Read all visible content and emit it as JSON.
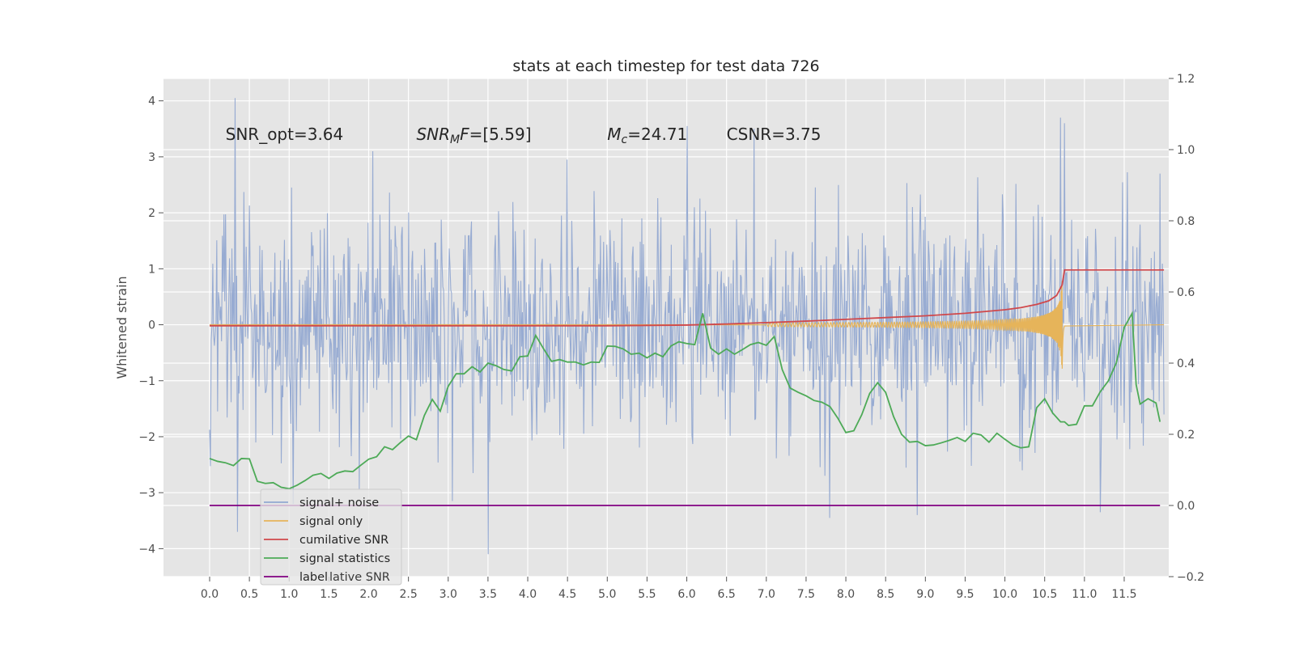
{
  "chart_data": {
    "type": "line",
    "title": "stats at each timestep for test data 726",
    "ylabel": "Whitened strain",
    "xlabel": "",
    "xlim": [
      -0.58,
      12.06
    ],
    "ylim": [
      -4.5,
      4.4
    ],
    "ylim_right": [
      -0.2,
      1.2
    ],
    "grid": true,
    "background": "#e5e5e5",
    "x_ticks": [
      0.0,
      0.5,
      1.0,
      1.5,
      2.0,
      2.5,
      3.0,
      3.5,
      4.0,
      4.5,
      5.0,
      5.5,
      6.0,
      6.5,
      7.0,
      7.5,
      8.0,
      8.5,
      9.0,
      9.5,
      10.0,
      10.5,
      11.0,
      11.5
    ],
    "x_tick_labels": [
      "0.0",
      "0.5",
      "1.0",
      "1.5",
      "2.0",
      "2.5",
      "3.0",
      "3.5",
      "4.0",
      "4.5",
      "5.0",
      "5.5",
      "6.0",
      "6.5",
      "7.0",
      "7.5",
      "8.0",
      "8.5",
      "9.0",
      "9.5",
      "10.0",
      "10.5",
      "11.0",
      "11.5"
    ],
    "y_ticks": [
      -4,
      -3,
      -2,
      -1,
      0,
      1,
      2,
      3,
      4
    ],
    "y_tick_labels": [
      "−4",
      "−3",
      "−2",
      "−1",
      "0",
      "1",
      "2",
      "3",
      "4"
    ],
    "y_ticks_right": [
      -0.2,
      0.0,
      0.2,
      0.4,
      0.6,
      0.8,
      1.0,
      1.2
    ],
    "y_tick_labels_right": [
      "−0.2",
      "0.0",
      "0.2",
      "0.4",
      "0.6",
      "0.8",
      "1.0",
      "1.2"
    ],
    "annotations": [
      {
        "text": "SNR_opt=3.64",
        "x": 0.2,
        "y": 3.3
      },
      {
        "text": "SNR",
        "sub": "M",
        "after": "F=[5.59]",
        "italic": true,
        "x": 2.6,
        "y": 3.3
      },
      {
        "text": "M",
        "sub": "c",
        "after": "=24.71",
        "italic": true,
        "x": 5.0,
        "y": 3.3
      },
      {
        "text": "CSNR=3.75",
        "x": 6.5,
        "y": 3.3
      }
    ],
    "noise": {
      "x_start": 0.0,
      "x_end": 12.0,
      "samples": 1200,
      "sigma": 1.0,
      "spikes": [
        [
          0.32,
          4.05
        ],
        [
          0.35,
          -3.7
        ],
        [
          1.05,
          -3.2
        ],
        [
          2.05,
          3.1
        ],
        [
          3.05,
          -3.15
        ],
        [
          3.5,
          3.75
        ],
        [
          3.5,
          -4.1
        ],
        [
          6.0,
          3.55
        ],
        [
          6.85,
          3.5
        ],
        [
          7.8,
          -3.45
        ],
        [
          8.9,
          -3.4
        ],
        [
          10.7,
          3.7
        ],
        [
          10.75,
          3.6
        ],
        [
          11.2,
          -3.35
        ],
        [
          11.95,
          2.7
        ]
      ],
      "color": "#92a8d1"
    },
    "series": [
      {
        "name": "signal+ noise",
        "color": "#92a8d1",
        "axis": "left",
        "kind": "noise"
      },
      {
        "name": "signal only",
        "color": "#e6b45a",
        "axis": "left",
        "kind": "chirp",
        "peak_x": 10.72,
        "peak_amp": 0.85
      },
      {
        "name": "cumilative SNR",
        "color": "#d0484b",
        "axis": "right",
        "x": [
          0.0,
          5.0,
          6.0,
          6.5,
          7.0,
          7.5,
          8.0,
          8.5,
          9.0,
          9.5,
          10.0,
          10.2,
          10.4,
          10.55,
          10.65,
          10.72,
          10.75,
          12.0
        ],
        "values": [
          0.505,
          0.505,
          0.507,
          0.51,
          0.514,
          0.518,
          0.523,
          0.528,
          0.533,
          0.54,
          0.55,
          0.556,
          0.565,
          0.575,
          0.59,
          0.62,
          0.662,
          0.662
        ]
      },
      {
        "name": "signal statistics",
        "color": "#4daa57",
        "axis": "right",
        "x": [
          0.0,
          0.1,
          0.2,
          0.3,
          0.4,
          0.5,
          0.6,
          0.7,
          0.8,
          0.9,
          1.0,
          1.1,
          1.2,
          1.3,
          1.4,
          1.5,
          1.6,
          1.7,
          1.8,
          1.9,
          2.0,
          2.1,
          2.2,
          2.3,
          2.4,
          2.5,
          2.6,
          2.7,
          2.8,
          2.9,
          3.0,
          3.1,
          3.2,
          3.3,
          3.4,
          3.5,
          3.6,
          3.7,
          3.8,
          3.9,
          4.0,
          4.1,
          4.2,
          4.3,
          4.4,
          4.5,
          4.6,
          4.7,
          4.8,
          4.9,
          5.0,
          5.1,
          5.2,
          5.3,
          5.4,
          5.5,
          5.6,
          5.7,
          5.8,
          5.9,
          6.0,
          6.1,
          6.2,
          6.3,
          6.4,
          6.5,
          6.6,
          6.7,
          6.8,
          6.9,
          7.0,
          7.1,
          7.2,
          7.3,
          7.4,
          7.5,
          7.6,
          7.7,
          7.8,
          7.9,
          8.0,
          8.1,
          8.2,
          8.3,
          8.4,
          8.5,
          8.6,
          8.7,
          8.8,
          8.9,
          9.0,
          9.1,
          9.2,
          9.3,
          9.4,
          9.5,
          9.6,
          9.7,
          9.8,
          9.9,
          10.0,
          10.1,
          10.2,
          10.3,
          10.4,
          10.5,
          10.6,
          10.7,
          10.75,
          10.8,
          10.9,
          11.0,
          11.1,
          11.2,
          11.3,
          11.4,
          11.5,
          11.6,
          11.65,
          11.7,
          11.8,
          11.9,
          11.95
        ],
        "values": [
          0.132,
          0.124,
          0.12,
          0.112,
          0.132,
          0.131,
          0.068,
          0.062,
          0.064,
          0.051,
          0.047,
          0.057,
          0.07,
          0.085,
          0.09,
          0.076,
          0.091,
          0.097,
          0.095,
          0.113,
          0.13,
          0.137,
          0.165,
          0.157,
          0.177,
          0.195,
          0.185,
          0.253,
          0.298,
          0.265,
          0.335,
          0.37,
          0.37,
          0.39,
          0.375,
          0.4,
          0.393,
          0.382,
          0.378,
          0.418,
          0.42,
          0.478,
          0.44,
          0.405,
          0.41,
          0.403,
          0.403,
          0.395,
          0.403,
          0.402,
          0.448,
          0.447,
          0.44,
          0.425,
          0.428,
          0.415,
          0.428,
          0.418,
          0.448,
          0.46,
          0.455,
          0.452,
          0.54,
          0.442,
          0.425,
          0.44,
          0.425,
          0.438,
          0.452,
          0.458,
          0.45,
          0.475,
          0.382,
          0.33,
          0.318,
          0.308,
          0.295,
          0.29,
          0.278,
          0.245,
          0.205,
          0.21,
          0.255,
          0.315,
          0.345,
          0.318,
          0.25,
          0.2,
          0.178,
          0.18,
          0.168,
          0.17,
          0.176,
          0.183,
          0.191,
          0.18,
          0.203,
          0.198,
          0.178,
          0.203,
          0.186,
          0.17,
          0.162,
          0.165,
          0.275,
          0.3,
          0.26,
          0.235,
          0.235,
          0.225,
          0.228,
          0.28,
          0.28,
          0.32,
          0.35,
          0.4,
          0.5,
          0.54,
          0.34,
          0.285,
          0.3,
          0.288,
          0.235
        ],
        "note_x": [
          0.0,
          0.1,
          0.2,
          0.3,
          0.4,
          0.5,
          0.6,
          0.7,
          0.8,
          0.9,
          1.0,
          1.1,
          1.2,
          1.3,
          1.4,
          1.5,
          1.6,
          1.7,
          1.8,
          1.9,
          2.0,
          2.1,
          2.2,
          2.3,
          2.4,
          2.5,
          2.6,
          2.7,
          2.8,
          2.9,
          3.0,
          3.1,
          3.2,
          3.3,
          3.4,
          3.5,
          3.6,
          3.7,
          3.8,
          3.9,
          4.0,
          4.1,
          4.2,
          4.3,
          4.4,
          4.5,
          4.6,
          4.7,
          4.8,
          4.9,
          5.0,
          5.1,
          5.2,
          5.3,
          5.4,
          5.5,
          5.6,
          5.7,
          5.8,
          5.9,
          6.0,
          6.1,
          6.2,
          6.3,
          6.4,
          6.5,
          6.6,
          6.7,
          6.8,
          6.9,
          7.0,
          7.1,
          7.2,
          7.3,
          7.4,
          7.5,
          7.6,
          7.7,
          7.8,
          7.9,
          8.0,
          8.1,
          8.2,
          8.3,
          8.4,
          8.5,
          8.6,
          8.7,
          8.8,
          8.9,
          9.0,
          9.1,
          9.2,
          9.3,
          9.4,
          9.5,
          9.6,
          9.7,
          9.8,
          9.9,
          10.0,
          10.1,
          10.2,
          10.3,
          10.4,
          10.5,
          10.6,
          10.7,
          10.75,
          10.8,
          10.9,
          11.0,
          11.1,
          11.2,
          11.3,
          11.4,
          11.5,
          11.6,
          11.65,
          11.7,
          11.8,
          11.9,
          11.95
        ]
      },
      {
        "name": "label",
        "color": "#800080",
        "axis": "right",
        "x": [
          0.0,
          11.95
        ],
        "values": [
          0.0,
          0.0
        ]
      }
    ],
    "legend": {
      "placement": "lower-left",
      "hidden_text": "lative SNR"
    }
  }
}
